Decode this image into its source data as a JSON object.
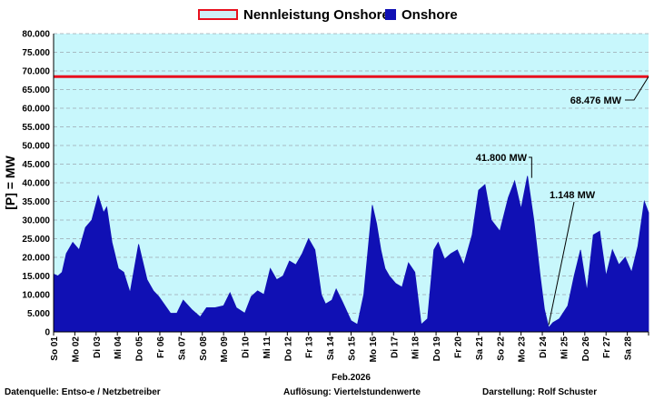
{
  "legend": {
    "capacity_label": "Nennleistung Onshore",
    "onshore_label": "Onshore"
  },
  "colors": {
    "plot_bg": "#c8f7fc",
    "area": "#1010b4",
    "capacity_line": "#e8101e",
    "grid": "#9ca8b0"
  },
  "chart_data": {
    "type": "area",
    "ylabel": "[P] = MW",
    "xlabel": "Feb.2026",
    "ylim": [
      0,
      80000
    ],
    "yticks": [
      "0",
      "5.000",
      "10.000",
      "15.000",
      "20.000",
      "25.000",
      "30.000",
      "35.000",
      "40.000",
      "45.000",
      "50.000",
      "55.000",
      "60.000",
      "65.000",
      "70.000",
      "75.000",
      "80.000"
    ],
    "grid": true,
    "legend_position": "top",
    "x_unit": "day of February 2026 (0 = start of So 01)",
    "xlim": [
      0,
      28
    ],
    "x_categories": [
      "So 01",
      "Mo 02",
      "Di 03",
      "Mi 04",
      "Do 05",
      "Fr 06",
      "Sa 07",
      "So 08",
      "Mo 09",
      "Di 10",
      "Mi 11",
      "Do 12",
      "Fr 13",
      "Sa 14",
      "So 15",
      "Mo 16",
      "Di 17",
      "Mi 18",
      "Do 19",
      "Fr 20",
      "Sa 21",
      "So 22",
      "Mo 23",
      "Di 24",
      "Mi 25",
      "Do 26",
      "Fr 27",
      "Sa 28"
    ],
    "series": [
      {
        "name": "Onshore",
        "type": "area",
        "x": [
          0.0,
          0.2,
          0.4,
          0.6,
          0.9,
          1.2,
          1.5,
          1.8,
          2.1,
          2.35,
          2.5,
          2.75,
          3.05,
          3.3,
          3.6,
          4.0,
          4.4,
          4.7,
          4.95,
          5.2,
          5.5,
          5.8,
          6.1,
          6.5,
          6.9,
          7.2,
          7.6,
          8.0,
          8.3,
          8.6,
          9.0,
          9.3,
          9.6,
          9.9,
          10.2,
          10.5,
          10.8,
          11.1,
          11.4,
          11.7,
          12.0,
          12.3,
          12.6,
          12.8,
          13.1,
          13.3,
          13.6,
          14.0,
          14.3,
          14.6,
          15.0,
          15.2,
          15.4,
          15.6,
          15.8,
          16.1,
          16.4,
          16.7,
          17.0,
          17.3,
          17.6,
          17.9,
          18.1,
          18.4,
          18.7,
          19.0,
          19.3,
          19.7,
          20.0,
          20.3,
          20.6,
          21.0,
          21.4,
          21.7,
          22.0,
          22.3,
          22.6,
          22.9,
          23.1,
          23.3,
          23.5,
          23.8,
          24.2,
          24.5,
          24.8,
          25.1,
          25.4,
          25.7,
          26.0,
          26.3,
          26.6,
          26.9,
          27.2,
          27.5,
          27.8,
          28.0
        ],
        "y": [
          15500,
          15000,
          16000,
          21000,
          24000,
          22000,
          28000,
          30000,
          36500,
          32000,
          33500,
          24000,
          17000,
          16000,
          10500,
          23500,
          14000,
          11000,
          9500,
          7500,
          5000,
          5000,
          8500,
          6000,
          4000,
          6500,
          6500,
          7000,
          10500,
          6500,
          5000,
          9500,
          11000,
          10000,
          17000,
          14000,
          15000,
          19000,
          18000,
          21000,
          25000,
          22000,
          10000,
          7500,
          8500,
          11500,
          8000,
          3000,
          2000,
          10000,
          34000,
          29000,
          22000,
          17000,
          15000,
          13000,
          12000,
          18500,
          16000,
          2000,
          3500,
          22000,
          24000,
          19500,
          21000,
          22000,
          18000,
          26000,
          38000,
          39500,
          30000,
          27000,
          36000,
          40500,
          33000,
          41800,
          30000,
          15000,
          6000,
          1148,
          2500,
          3500,
          7000,
          15000,
          22000,
          11000,
          26000,
          27000,
          15000,
          22000,
          18000,
          20000,
          16000,
          23000,
          35000,
          32000
        ]
      },
      {
        "name": "Nennleistung Onshore",
        "type": "line",
        "x": [
          0,
          28
        ],
        "y": [
          68476,
          68476
        ]
      }
    ],
    "annotations": [
      {
        "label": "68.476 MW",
        "value": 68476
      },
      {
        "label": "41.800 MW",
        "value": 41800
      },
      {
        "label": "1.148 MW",
        "value": 1148
      }
    ]
  },
  "footer": {
    "source": "Datenquelle:  Entso-e  / Netzbetreiber",
    "resolution": "Auflösung: Viertelstundenwerte",
    "author": "Darstellung:  Rolf Schuster"
  }
}
